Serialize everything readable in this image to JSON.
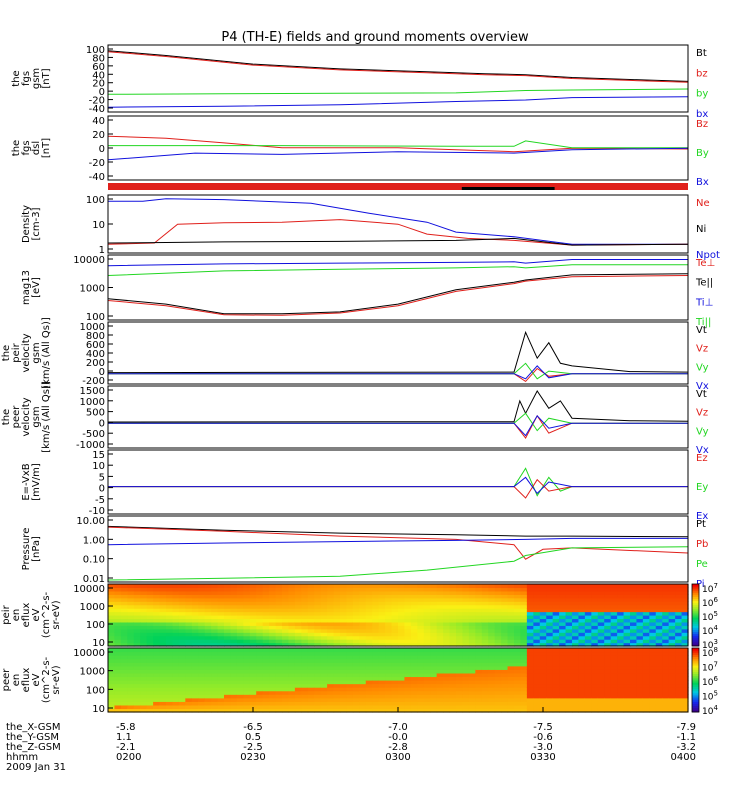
{
  "title": "P4 (TH-E) fields and ground moments overview",
  "date": "2009 Jan 31",
  "colors": {
    "black": "#000000",
    "red": "#e0201b",
    "green": "#22d622",
    "blue": "#1010dd"
  },
  "chart_data": [
    {
      "type": "line",
      "id": "p1",
      "ylabel": [
        "the",
        "fgs",
        "gsm",
        "[nT]"
      ],
      "yticks": [
        "100",
        "80",
        "60",
        "40",
        "20",
        "0",
        "-20",
        "-40"
      ],
      "ylim": [
        -40,
        100
      ],
      "legend": [
        {
          "label": "Bt",
          "color": "black"
        },
        {
          "label": "bz",
          "color": "red"
        },
        {
          "label": "by",
          "color": "green"
        },
        {
          "label": "bx",
          "color": "blue"
        }
      ],
      "series": [
        {
          "name": "Bt",
          "color": "black",
          "x": [
            0,
            0.1,
            0.25,
            0.4,
            0.55,
            0.65,
            0.72,
            0.8,
            0.9,
            1.0
          ],
          "y": [
            88,
            78,
            60,
            50,
            44,
            40,
            38,
            32,
            28,
            24
          ]
        },
        {
          "name": "bz",
          "color": "red",
          "x": [
            0,
            0.1,
            0.25,
            0.4,
            0.55,
            0.65,
            0.72,
            0.8,
            0.9,
            1.0
          ],
          "y": [
            86,
            76,
            58,
            48,
            42,
            38,
            36,
            30,
            26,
            22
          ]
        },
        {
          "name": "by",
          "color": "green",
          "x": [
            0,
            0.2,
            0.4,
            0.6,
            0.72,
            0.8,
            1.0
          ],
          "y": [
            -3,
            -2,
            -1,
            0,
            5,
            6,
            8
          ]
        },
        {
          "name": "bx",
          "color": "blue",
          "x": [
            0,
            0.2,
            0.4,
            0.6,
            0.72,
            0.8,
            1.0
          ],
          "y": [
            -30,
            -28,
            -25,
            -18,
            -15,
            -10,
            -8
          ]
        }
      ]
    },
    {
      "type": "line",
      "id": "p2",
      "ylabel": [
        "the",
        "fgs",
        "dsl",
        "[nT]"
      ],
      "yticks": [
        "40",
        "20",
        "0",
        "-20",
        "-40"
      ],
      "ylim": [
        -50,
        45
      ],
      "legend": [
        {
          "label": "Bz",
          "color": "red"
        },
        {
          "label": "By",
          "color": "green"
        },
        {
          "label": "Bx",
          "color": "blue"
        }
      ],
      "series": [
        {
          "name": "Bz",
          "color": "red",
          "x": [
            0,
            0.1,
            0.2,
            0.3,
            0.5,
            0.6,
            0.7,
            0.8,
            1.0
          ],
          "y": [
            15,
            12,
            5,
            -2,
            -2,
            -5,
            -8,
            -3,
            -4
          ]
        },
        {
          "name": "By",
          "color": "green",
          "x": [
            0,
            0.3,
            0.6,
            0.7,
            0.72,
            0.8,
            1.0
          ],
          "y": [
            1,
            1,
            0,
            0,
            8,
            -2,
            -2
          ]
        },
        {
          "name": "Bx",
          "color": "blue",
          "x": [
            0,
            0.15,
            0.3,
            0.5,
            0.7,
            0.8,
            1.0
          ],
          "y": [
            -20,
            -10,
            -12,
            -8,
            -10,
            -5,
            -3
          ]
        }
      ]
    },
    {
      "type": "line",
      "id": "p3",
      "ylabel": [
        "Density",
        "[cm-3]"
      ],
      "yticks": [
        "100",
        "10",
        "1"
      ],
      "log": true,
      "ylim": [
        0.5,
        300
      ],
      "legend": [
        {
          "label": "Ne",
          "color": "red"
        },
        {
          "label": "Ni",
          "color": "black"
        },
        {
          "label": "Npot",
          "color": "blue"
        }
      ],
      "series": [
        {
          "name": "Npot",
          "color": "blue",
          "x": [
            0,
            0.06,
            0.1,
            0.2,
            0.35,
            0.45,
            0.55,
            0.6,
            0.7,
            0.8,
            1.0
          ],
          "y": [
            150,
            150,
            200,
            180,
            120,
            40,
            15,
            5,
            3,
            1.3,
            1.3
          ]
        },
        {
          "name": "Ne",
          "color": "red",
          "x": [
            0,
            0.08,
            0.12,
            0.2,
            0.3,
            0.4,
            0.5,
            0.55,
            0.62,
            0.7,
            0.8,
            1.0
          ],
          "y": [
            1.3,
            1.5,
            12,
            14,
            15,
            20,
            12,
            4,
            2.5,
            2,
            1.2,
            1.3
          ]
        },
        {
          "name": "Ni",
          "color": "black",
          "x": [
            0,
            0.1,
            0.2,
            0.4,
            0.6,
            0.7,
            0.8,
            1.0
          ],
          "y": [
            1.5,
            1.6,
            1.7,
            1.8,
            2,
            2.5,
            1.2,
            1.3
          ]
        }
      ]
    },
    {
      "type": "line",
      "id": "p4",
      "ylabel": [
        "mag13",
        "[eV]"
      ],
      "yticks": [
        "10000",
        "1000",
        "100"
      ],
      "log": true,
      "ylim": [
        10,
        15000
      ],
      "legend": [
        {
          "label": "Te⊥",
          "color": "red"
        },
        {
          "label": "Te||",
          "color": "black"
        },
        {
          "label": "Ti⊥",
          "color": "blue"
        },
        {
          "label": "Ti||",
          "color": "green"
        }
      ],
      "series": [
        {
          "name": "Ti⊥",
          "color": "blue",
          "x": [
            0,
            0.2,
            0.4,
            0.6,
            0.7,
            0.72,
            0.8,
            1.0
          ],
          "y": [
            4500,
            5500,
            6000,
            6500,
            7000,
            6000,
            9000,
            9000
          ]
        },
        {
          "name": "Ti||",
          "color": "green",
          "x": [
            0,
            0.2,
            0.4,
            0.6,
            0.7,
            0.72,
            0.8,
            1.0
          ],
          "y": [
            1500,
            2500,
            3000,
            3500,
            4000,
            3500,
            5000,
            5000
          ]
        },
        {
          "name": "Te||",
          "color": "black",
          "x": [
            0,
            0.1,
            0.2,
            0.3,
            0.4,
            0.5,
            0.6,
            0.7,
            0.72,
            0.8,
            1.0
          ],
          "y": [
            110,
            60,
            20,
            20,
            25,
            60,
            300,
            700,
            900,
            1600,
            1800
          ]
        },
        {
          "name": "Te⊥",
          "color": "red",
          "x": [
            0,
            0.1,
            0.2,
            0.3,
            0.4,
            0.5,
            0.6,
            0.7,
            0.72,
            0.8,
            1.0
          ],
          "y": [
            90,
            50,
            18,
            17,
            22,
            50,
            250,
            600,
            800,
            1300,
            1500
          ]
        }
      ]
    },
    {
      "type": "line",
      "id": "p5",
      "ylabel": [
        "the",
        "peir",
        "velocity",
        "gsm",
        "[km/s (All Qs)]"
      ],
      "yticks": [
        "1000",
        "800",
        "600",
        "400",
        "200",
        "0",
        "-200"
      ],
      "ylim": [
        -200,
        1000
      ],
      "legend": [
        {
          "label": "Vt",
          "color": "black"
        },
        {
          "label": "Vz",
          "color": "red"
        },
        {
          "label": "Vy",
          "color": "green"
        },
        {
          "label": "Vx",
          "color": "blue"
        }
      ],
      "series": [
        {
          "name": "Vt",
          "color": "black",
          "x": [
            0,
            0.7,
            0.72,
            0.74,
            0.76,
            0.78,
            0.8,
            0.9,
            1.0
          ],
          "y": [
            20,
            30,
            800,
            300,
            600,
            200,
            150,
            40,
            30
          ]
        },
        {
          "name": "Vz",
          "color": "red",
          "x": [
            0,
            0.7,
            0.72,
            0.74,
            0.76,
            0.8,
            1.0
          ],
          "y": [
            0,
            0,
            -150,
            100,
            -50,
            0,
            0
          ]
        },
        {
          "name": "Vy",
          "color": "green",
          "x": [
            0,
            0.7,
            0.72,
            0.74,
            0.76,
            0.8,
            1.0
          ],
          "y": [
            0,
            0,
            200,
            -100,
            50,
            0,
            0
          ]
        },
        {
          "name": "Vx",
          "color": "blue",
          "x": [
            0,
            0.7,
            0.72,
            0.74,
            0.76,
            0.8,
            1.0
          ],
          "y": [
            0,
            0,
            -100,
            150,
            -80,
            0,
            0
          ]
        }
      ]
    },
    {
      "type": "line",
      "id": "p6",
      "ylabel": [
        "the",
        "peer",
        "velocity",
        "gsm",
        "[km/s (All Qs)]"
      ],
      "yticks": [
        "1500",
        "1000",
        "500",
        "0",
        "-500",
        "-1000"
      ],
      "ylim": [
        -1000,
        1500
      ],
      "legend": [
        {
          "label": "Vt",
          "color": "black"
        },
        {
          "label": "Vz",
          "color": "red"
        },
        {
          "label": "Vy",
          "color": "green"
        },
        {
          "label": "Vx",
          "color": "blue"
        }
      ],
      "series": [
        {
          "name": "Vt",
          "color": "black",
          "x": [
            0,
            0.7,
            0.71,
            0.72,
            0.74,
            0.76,
            0.78,
            0.8,
            0.9,
            1.0
          ],
          "y": [
            50,
            60,
            900,
            400,
            1300,
            600,
            900,
            200,
            100,
            80
          ]
        },
        {
          "name": "Vz",
          "color": "red",
          "x": [
            0,
            0.7,
            0.72,
            0.74,
            0.76,
            0.8,
            1.0
          ],
          "y": [
            0,
            0,
            -600,
            300,
            -400,
            0,
            0
          ]
        },
        {
          "name": "Vy",
          "color": "green",
          "x": [
            0,
            0.7,
            0.72,
            0.74,
            0.76,
            0.8,
            1.0
          ],
          "y": [
            0,
            0,
            400,
            -300,
            200,
            0,
            0
          ]
        },
        {
          "name": "Vx",
          "color": "blue",
          "x": [
            0,
            0.7,
            0.72,
            0.74,
            0.76,
            0.8,
            1.0
          ],
          "y": [
            0,
            0,
            -500,
            300,
            -200,
            0,
            0
          ]
        }
      ]
    },
    {
      "type": "line",
      "id": "p7",
      "ylabel": [
        "E=-VxB",
        "[mV/m]"
      ],
      "yticks": [
        "15",
        "10",
        "5",
        "0",
        "-5",
        "-10"
      ],
      "ylim": [
        -12,
        16
      ],
      "legend": [
        {
          "label": "Ez",
          "color": "red"
        },
        {
          "label": "Ey",
          "color": "green"
        },
        {
          "label": "Ex",
          "color": "blue"
        }
      ],
      "series": [
        {
          "name": "Ey",
          "color": "green",
          "x": [
            0,
            0.7,
            0.72,
            0.74,
            0.76,
            0.78,
            0.8,
            1.0
          ],
          "y": [
            0,
            0,
            8,
            -4,
            4,
            -2,
            0,
            0
          ]
        },
        {
          "name": "Ez",
          "color": "red",
          "x": [
            0,
            0.7,
            0.72,
            0.74,
            0.76,
            0.8,
            1.0
          ],
          "y": [
            0,
            0,
            -5,
            3,
            -2,
            0,
            0
          ]
        },
        {
          "name": "Ex",
          "color": "blue",
          "x": [
            0,
            0.7,
            0.72,
            0.74,
            0.76,
            0.8,
            1.0
          ],
          "y": [
            0,
            0,
            4,
            -3,
            2,
            0,
            0
          ]
        }
      ]
    },
    {
      "type": "line",
      "id": "p8",
      "ylabel": [
        "Pressure",
        "[nPa]"
      ],
      "yticks": [
        "10.00",
        "1.00",
        "0.10",
        "0.01"
      ],
      "log": true,
      "ylim": [
        0.008,
        12
      ],
      "legend": [
        {
          "label": "Pt",
          "color": "black"
        },
        {
          "label": "Pb",
          "color": "red"
        },
        {
          "label": "Pe",
          "color": "green"
        },
        {
          "label": "Pi",
          "color": "blue"
        }
      ],
      "series": [
        {
          "name": "Pt",
          "color": "black",
          "x": [
            0,
            0.2,
            0.4,
            0.6,
            0.72,
            0.8,
            1.0
          ],
          "y": [
            3.8,
            2.5,
            1.8,
            1.5,
            1.3,
            1.3,
            1.2
          ]
        },
        {
          "name": "Pb",
          "color": "red",
          "x": [
            0,
            0.2,
            0.4,
            0.6,
            0.7,
            0.72,
            0.75,
            0.8,
            1.0
          ],
          "y": [
            3.5,
            2.2,
            1.3,
            0.9,
            0.5,
            0.1,
            0.3,
            0.35,
            0.2
          ]
        },
        {
          "name": "Pi",
          "color": "blue",
          "x": [
            0,
            0.2,
            0.4,
            0.6,
            0.72,
            0.8,
            1.0
          ],
          "y": [
            0.5,
            0.6,
            0.7,
            0.8,
            0.9,
            1.0,
            1.0
          ]
        },
        {
          "name": "Pe",
          "color": "green",
          "x": [
            0,
            0.2,
            0.4,
            0.55,
            0.7,
            0.72,
            0.8,
            1.0
          ],
          "y": [
            0.01,
            0.012,
            0.015,
            0.03,
            0.08,
            0.15,
            0.35,
            0.4
          ]
        }
      ]
    },
    {
      "type": "heatmap",
      "id": "p9",
      "ylabel": [
        "the",
        "peir",
        "en",
        "eflux",
        "eV",
        "(cm^2-s-",
        "sr-eV)"
      ],
      "yticks": [
        "10000",
        "1000",
        "100",
        "10"
      ],
      "log": true,
      "ylim": [
        5,
        20000
      ],
      "colorbar_ticks": [
        "10^7",
        "10^6",
        "10^5",
        "10^4",
        "10^3"
      ],
      "colorbar_range": [
        2,
        7
      ]
    },
    {
      "type": "heatmap",
      "id": "p10",
      "ylabel": [
        "the",
        "peer",
        "en",
        "eflux",
        "eV",
        "(cm^2-s-",
        "sr-eV)"
      ],
      "yticks": [
        "10000",
        "1000",
        "100",
        "10"
      ],
      "log": true,
      "ylim": [
        5,
        20000
      ],
      "colorbar_ticks": [
        "10^8",
        "10^7",
        "10^6",
        "10^5",
        "10^4"
      ],
      "colorbar_range": [
        3,
        8
      ]
    }
  ],
  "xaxis": {
    "rows": [
      {
        "label": "the_X-GSM",
        "values": [
          "-5.8",
          "-6.5",
          "-7.0",
          "-7.5",
          "-7.9"
        ]
      },
      {
        "label": "the_Y-GSM",
        "values": [
          "1.1",
          "0.5",
          "-0.0",
          "-0.6",
          "-1.1"
        ]
      },
      {
        "label": "the_Z-GSM",
        "values": [
          "-2.1",
          "-2.5",
          "-2.8",
          "-3.0",
          "-3.2"
        ]
      },
      {
        "label": "hhmm",
        "values": [
          "0200",
          "0230",
          "0300",
          "0330",
          "0400"
        ]
      }
    ]
  }
}
